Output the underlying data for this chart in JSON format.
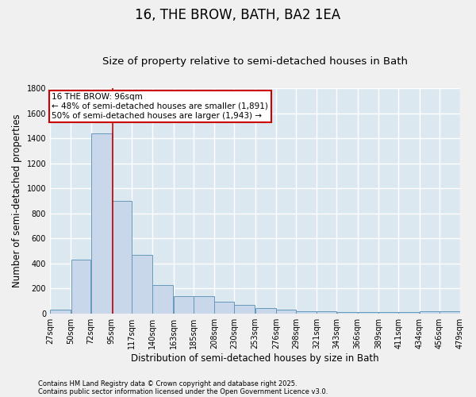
{
  "title": "16, THE BROW, BATH, BA2 1EA",
  "subtitle": "Size of property relative to semi-detached houses in Bath",
  "xlabel": "Distribution of semi-detached houses by size in Bath",
  "ylabel": "Number of semi-detached properties",
  "footnote1": "Contains HM Land Registry data © Crown copyright and database right 2025.",
  "footnote2": "Contains public sector information licensed under the Open Government Licence v3.0.",
  "bar_left_edges": [
    27,
    50,
    72,
    95,
    117,
    140,
    163,
    185,
    208,
    230,
    253,
    276,
    298,
    321,
    343,
    366,
    389,
    411,
    434,
    456
  ],
  "bar_widths": [
    23,
    22,
    23,
    22,
    23,
    23,
    22,
    23,
    22,
    23,
    23,
    22,
    23,
    22,
    23,
    23,
    22,
    23,
    22,
    23
  ],
  "bar_heights": [
    30,
    430,
    1440,
    900,
    470,
    225,
    140,
    140,
    95,
    65,
    45,
    30,
    20,
    15,
    12,
    10,
    10,
    10,
    15,
    15
  ],
  "bar_facecolor": "#c8d8ea",
  "bar_edgecolor": "#6699bb",
  "fig_facecolor": "#f0f0f0",
  "axes_facecolor": "#dce8f0",
  "grid_color": "#ffffff",
  "ylim": [
    0,
    1800
  ],
  "yticks": [
    0,
    200,
    400,
    600,
    800,
    1000,
    1200,
    1400,
    1600,
    1800
  ],
  "x_tick_labels": [
    "27sqm",
    "50sqm",
    "72sqm",
    "95sqm",
    "117sqm",
    "140sqm",
    "163sqm",
    "185sqm",
    "208sqm",
    "230sqm",
    "253sqm",
    "276sqm",
    "298sqm",
    "321sqm",
    "343sqm",
    "366sqm",
    "389sqm",
    "411sqm",
    "434sqm",
    "456sqm",
    "479sqm"
  ],
  "property_size": 96,
  "red_line_color": "#cc0000",
  "annotation_text_line1": "16 THE BROW: 96sqm",
  "annotation_text_line2": "← 48% of semi-detached houses are smaller (1,891)",
  "annotation_text_line3": "50% of semi-detached houses are larger (1,943) →",
  "annotation_box_color": "#cc0000",
  "title_fontsize": 12,
  "subtitle_fontsize": 9.5,
  "tick_fontsize": 7,
  "ylabel_fontsize": 8.5,
  "xlabel_fontsize": 8.5,
  "annotation_fontsize": 7.5,
  "footnote_fontsize": 6
}
